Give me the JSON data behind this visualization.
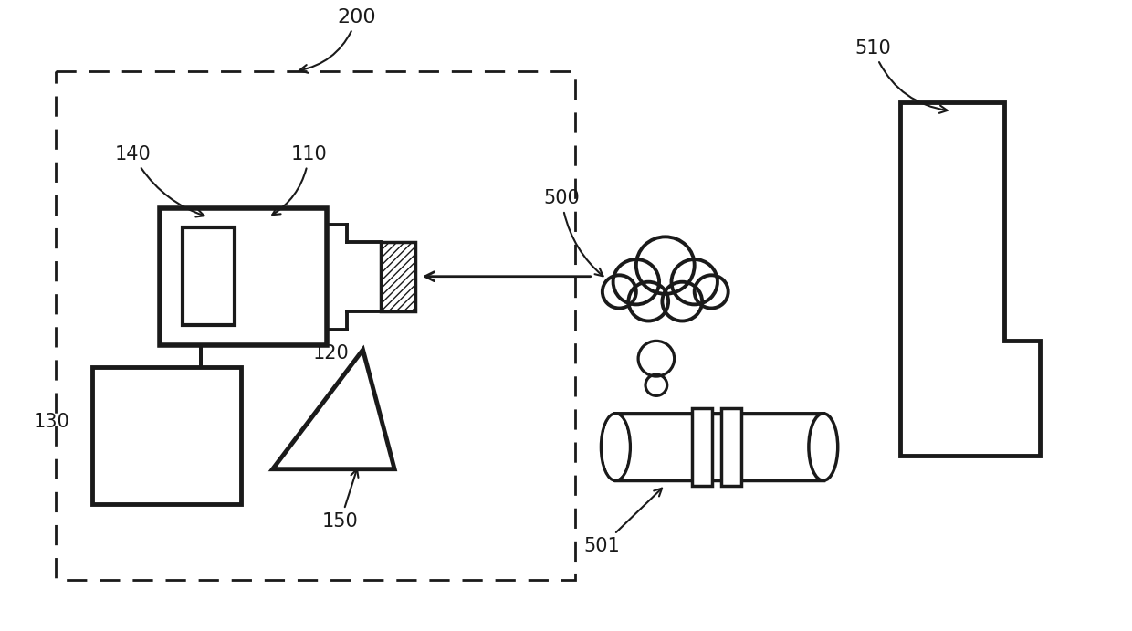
{
  "bg_color": "#ffffff",
  "line_color": "#1a1a1a",
  "label_200": "200",
  "label_110": "110",
  "label_140": "140",
  "label_130": "130",
  "label_120": "120",
  "label_150": "150",
  "label_500": "500",
  "label_501": "501",
  "label_510": "510",
  "lw": 2.8,
  "fs": 15
}
